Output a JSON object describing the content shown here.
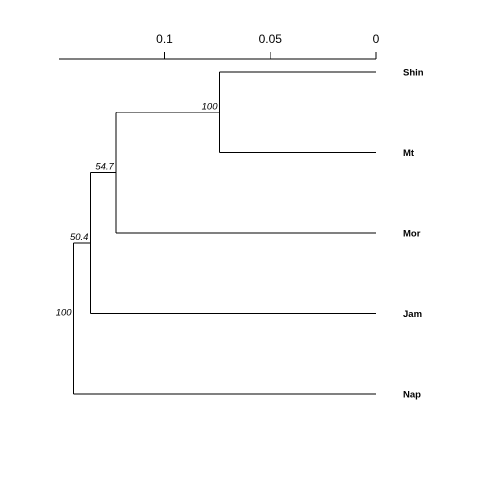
{
  "axis": {
    "ticks": [
      {
        "value": 0.1,
        "label": "0.1"
      },
      {
        "value": 0.05,
        "label": "0.05"
      },
      {
        "value": 0,
        "label": "0"
      }
    ],
    "domain": [
      0.15,
      0
    ]
  },
  "leaves": [
    {
      "label": "Shin"
    },
    {
      "label": "Mt"
    },
    {
      "label": "Mor"
    },
    {
      "label": "Jam"
    },
    {
      "label": "Nap"
    }
  ],
  "nodes": [
    {
      "height": 0.074,
      "support": "100",
      "children": [
        "Shin",
        "Mt"
      ]
    },
    {
      "height": 0.123,
      "support": "54.7",
      "children": [
        "Shin,Mt",
        "Mor"
      ]
    },
    {
      "height": 0.135,
      "support": "50.4",
      "children": [
        "Shin,Mt,Mor",
        "Jam"
      ]
    },
    {
      "height": 0.143,
      "support": "100",
      "children": [
        "Shin,Mt,Mor,Jam",
        "Nap"
      ]
    }
  ]
}
